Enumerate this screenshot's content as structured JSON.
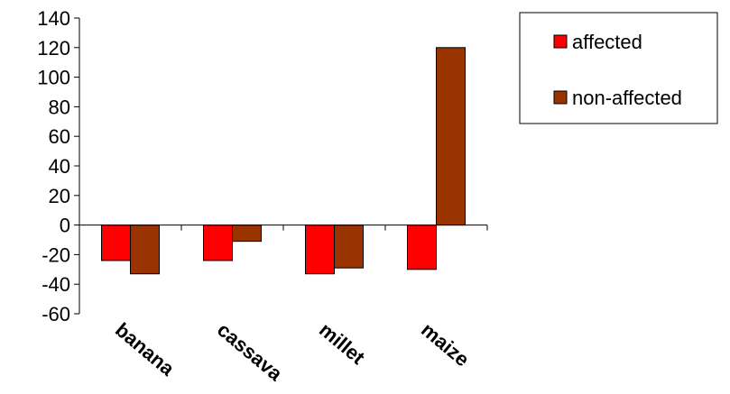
{
  "chart_data": {
    "type": "bar",
    "categories": [
      "banana",
      "cassava",
      "millet",
      "maize"
    ],
    "series": [
      {
        "name": "affected",
        "values": [
          -24,
          -24,
          -33,
          -30
        ],
        "color": "#ff0000"
      },
      {
        "name": "non-affected",
        "values": [
          -33,
          -11,
          -29,
          120
        ],
        "color": "#993300"
      }
    ],
    "ylim": [
      -60,
      140
    ],
    "yticks": [
      "140",
      "120",
      "100",
      "80",
      "60",
      "40",
      "20",
      "0",
      "-20",
      "-40",
      "-60"
    ],
    "grid": false,
    "legend_position": "top-right",
    "title": "",
    "xlabel": "",
    "ylabel": ""
  }
}
